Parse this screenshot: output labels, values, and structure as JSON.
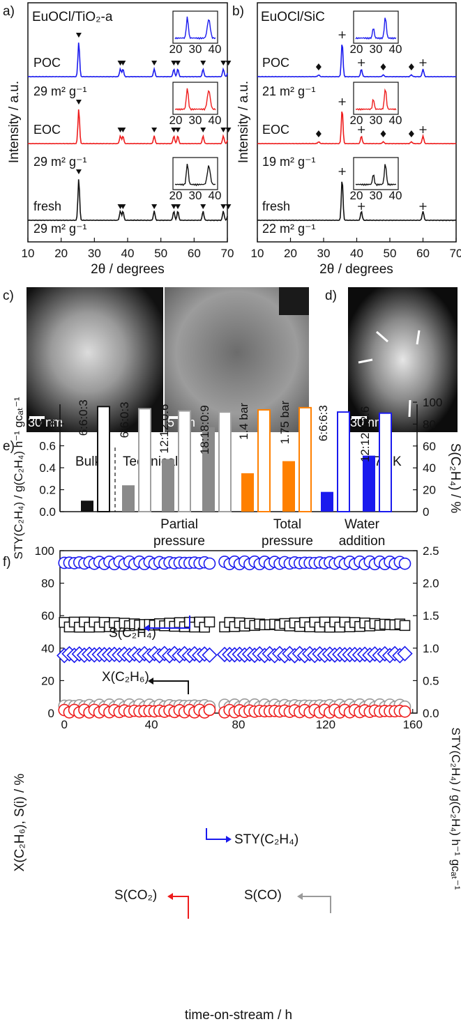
{
  "colors": {
    "black": "#111111",
    "red": "#ee1c1c",
    "blue": "#1a1aee",
    "gray_dark": "#8a8a8a",
    "gray_mid": "#a0a0a0",
    "orange": "#ff8000",
    "co2_red": "#ee1c1c",
    "co_gray": "#9a9a9a"
  },
  "panels": {
    "a": {
      "label": "a)",
      "title": "EuOCl/TiO₂-a",
      "traces": [
        "POC",
        "EOC",
        "fresh"
      ],
      "areas": [
        "29 m² g⁻¹",
        "29 m² g⁻¹",
        "29 m² g⁻¹"
      ],
      "inset_ticks": [
        "20",
        "30",
        "40"
      ]
    },
    "b": {
      "label": "b)",
      "title": "EuOCl/SiC",
      "traces": [
        "POC",
        "EOC",
        "fresh"
      ],
      "areas": [
        "21 m² g⁻¹",
        "19 m² g⁻¹",
        "22 m² g⁻¹"
      ],
      "inset_ticks": [
        "20",
        "30",
        "40"
      ]
    },
    "ab_ylabel": "Intensity / a.u.",
    "ab_xlabel": "2θ / degrees",
    "c": {
      "label": "c)",
      "scale1": "30 nm",
      "scale2": "5 nm"
    },
    "d": {
      "label": "d)",
      "scale": "30 nm"
    },
    "e": {
      "label": "e)",
      "temp": "773 K",
      "bulk": "Bulk",
      "technical": "Technical",
      "ylabel_left": "STY(C₂H₄) / g(C₂H₄) h⁻¹ gᴄₐₜ⁻¹",
      "ylabel_right": "S(C₂H₄) / %",
      "groups": [
        "Partial",
        "pressure",
        "Total",
        "pressure",
        "Water",
        "addition"
      ],
      "bar_labels": [
        "6:6:0:3",
        "6:6:0:3",
        "12:12:0:6",
        "18:18:0:9",
        "1.4 bar",
        "1.75 bar",
        "6:6:6:3",
        "12:12:12:6"
      ]
    },
    "f": {
      "label": "f)",
      "xlabel": "time-on-stream / h",
      "ylabel_left": "X(C₂H₆), S(i) / %",
      "ylabel_right": "STY(C₂H₄) / g(C₂H₄) h⁻¹ gᴄₐₜ⁻¹",
      "ann_sc2h4": "S(C₂H₄)",
      "ann_xc2h6": "X(C₂H₆)",
      "ann_sty": "STY(C₂H₄)",
      "ann_sco2": "S(CO₂)",
      "ann_sco": "S(CO)"
    }
  },
  "chart_data": [
    {
      "type": "line",
      "panel": "a",
      "xlabel": "2θ / degrees",
      "ylabel": "Intensity / a.u.",
      "xlim": [
        10,
        70
      ],
      "xticks": [
        10,
        20,
        30,
        40,
        50,
        60,
        70
      ],
      "peaks_2theta": [
        25.3,
        37.8,
        38.6,
        48.0,
        53.9,
        55.1,
        62.7,
        68.8,
        70.3
      ],
      "series": [
        {
          "name": "POC",
          "color": "#1a1aee"
        },
        {
          "name": "EOC",
          "color": "#ee1c1c"
        },
        {
          "name": "fresh",
          "color": "#111111"
        }
      ]
    },
    {
      "type": "line",
      "panel": "b",
      "xlabel": "2θ / degrees",
      "ylabel": "Intensity / a.u.",
      "xlim": [
        10,
        70
      ],
      "xticks": [
        10,
        20,
        30,
        40,
        50,
        60,
        70
      ],
      "peaks_2theta": [
        35.6,
        41.4,
        60.0
      ],
      "eu_peaks_2theta": [
        28.5,
        48.0,
        56.5
      ],
      "series": [
        {
          "name": "POC",
          "color": "#1a1aee"
        },
        {
          "name": "EOC",
          "color": "#ee1c1c"
        },
        {
          "name": "fresh",
          "color": "#111111"
        }
      ]
    },
    {
      "type": "bar",
      "panel": "e",
      "ylim_left": [
        0,
        0.8
      ],
      "yticks_left": [
        0.0,
        0.2,
        0.4,
        0.6,
        0.8
      ],
      "ylim_right": [
        0,
        100
      ],
      "yticks_right": [
        0,
        20,
        40,
        60,
        80,
        100
      ],
      "categories": [
        "6:6:0:3 bulk",
        "6:6:0:3",
        "12:12:0:6",
        "18:18:0:9",
        "1.4 bar",
        "1.75 bar",
        "6:6:6:3",
        "12:12:12:6"
      ],
      "series": [
        {
          "values": [
            0.1,
            0.24,
            0.48,
            0.77,
            0.35,
            0.46,
            0.18,
            0.51
          ]
        },
        {
          "values": [
            96,
            94,
            92,
            91,
            93,
            95,
            91,
            90
          ]
        }
      ],
      "fill_colors": [
        "#111111",
        "#8a8a8a",
        "#8a8a8a",
        "#8a8a8a",
        "#ff8000",
        "#ff8000",
        "#1a1aee",
        "#1a1aee"
      ]
    },
    {
      "type": "scatter",
      "panel": "f",
      "xlabel": "time-on-stream / h",
      "xlim": [
        -2,
        162
      ],
      "xticks": [
        0,
        40,
        80,
        120,
        160
      ],
      "ylim_left": [
        0,
        100
      ],
      "yticks_left": [
        0,
        20,
        40,
        60,
        80,
        100
      ],
      "ylim_right": [
        0,
        2.5
      ],
      "yticks_right": [
        0.0,
        0.5,
        1.0,
        1.5,
        2.0,
        2.5
      ],
      "series": [
        {
          "name": "S(C₂H₄)",
          "axis": "left",
          "marker": "circle",
          "color": "#1a1aee",
          "level": 92.5
        },
        {
          "name": "X(C₂H₆)",
          "axis": "left",
          "marker": "square",
          "color": "#111111",
          "level": 54.5
        },
        {
          "name": "STY(C₂H₄)",
          "axis": "right",
          "marker": "diamond",
          "color": "#1a1aee",
          "level": 0.9
        },
        {
          "name": "S(CO)",
          "axis": "left",
          "marker": "circle",
          "color": "#9a9a9a",
          "level": 4.5
        },
        {
          "name": "S(CO₂)",
          "axis": "left",
          "marker": "circle",
          "color": "#ee1c1c",
          "level": 1.2
        }
      ]
    }
  ]
}
